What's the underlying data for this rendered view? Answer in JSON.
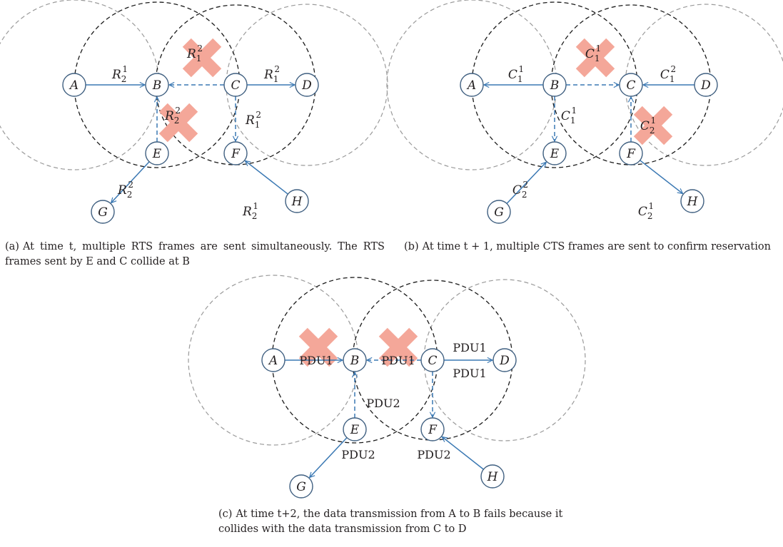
{
  "captions": {
    "a": {
      "prefix": "(a)",
      "text": "At time t, multiple RTS frames are sent simultaneously. The RTS frames sent by E and C collide at B"
    },
    "b": {
      "prefix": "(b)",
      "text": "At time t + 1, multiple CTS frames are sent to confirm reservation"
    },
    "c": {
      "prefix": "(c)",
      "text": "At time t+2, the data transmission from A to B fails because it collides with the data transmission from C to D"
    }
  },
  "colors": {
    "arrow": "#3a78b3",
    "collision": "#f4a799",
    "range_gray": "#9a9a9a",
    "range_black": "#1a1a1a"
  },
  "panels": [
    {
      "id": "a",
      "nodes": [
        "A",
        "B",
        "C",
        "D",
        "E",
        "F",
        "G",
        "H"
      ],
      "labels": [
        {
          "main": "R",
          "sub": "2",
          "sup": "1",
          "italic": true
        },
        {
          "main": "R",
          "sub": "1",
          "sup": "2",
          "italic": true
        },
        {
          "main": "R",
          "sub": "1",
          "sup": "2",
          "italic": true
        },
        {
          "main": "R",
          "sub": "1",
          "sup": "2",
          "italic": true
        },
        {
          "main": "R",
          "sub": "2",
          "sup": "2",
          "italic": true
        },
        {
          "main": "R",
          "sub": "2",
          "sup": "2",
          "italic": true
        },
        {
          "main": "R",
          "sub": "2",
          "sup": "1",
          "italic": true
        }
      ]
    },
    {
      "id": "b",
      "nodes": [
        "A",
        "B",
        "C",
        "D",
        "E",
        "F",
        "G",
        "H"
      ],
      "labels": [
        {
          "main": "C",
          "sub": "1",
          "sup": "1",
          "italic": true
        },
        {
          "main": "C",
          "sub": "1",
          "sup": "1",
          "italic": true
        },
        {
          "main": "C",
          "sub": "1",
          "sup": "2",
          "italic": true
        },
        {
          "main": "C",
          "sub": "1",
          "sup": "1",
          "italic": true
        },
        {
          "main": "C",
          "sub": "2",
          "sup": "1",
          "italic": true
        },
        {
          "main": "C",
          "sub": "2",
          "sup": "2",
          "italic": true
        },
        {
          "main": "C",
          "sub": "2",
          "sup": "1",
          "italic": true
        }
      ]
    },
    {
      "id": "c",
      "nodes": [
        "A",
        "B",
        "C",
        "D",
        "E",
        "F",
        "G",
        "H"
      ],
      "labels": [
        {
          "main": "PDU1"
        },
        {
          "main": "PDU1"
        },
        {
          "main": "PDU1"
        },
        {
          "main": "PDU1"
        },
        {
          "main": "PDU2"
        },
        {
          "main": "PDU2"
        },
        {
          "main": "PDU2"
        }
      ]
    }
  ]
}
